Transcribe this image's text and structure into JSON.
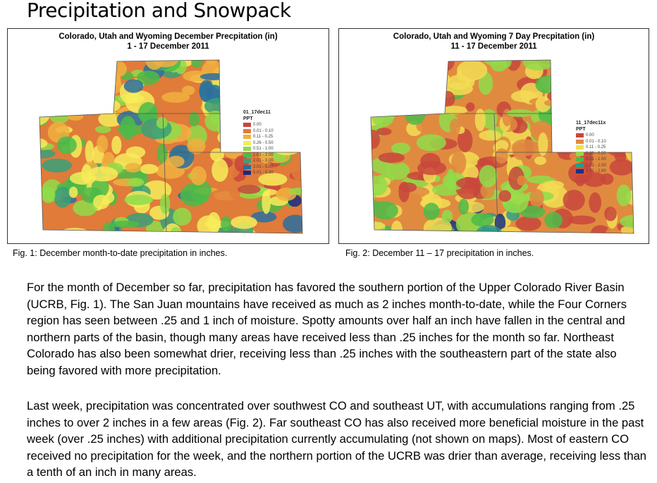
{
  "title": "Precipitation and Snowpack",
  "figures": [
    {
      "map_title_1": "Colorado, Utah and Wyoming December Precpitation (in)",
      "map_title_2": "1 - 17 December 2011",
      "legend_title": "01_17dec11",
      "legend_subtitle": "PPT",
      "legend": [
        {
          "label": "0.00",
          "color": "#c8463c"
        },
        {
          "label": "0.01 - 0.10",
          "color": "#e07b3a"
        },
        {
          "label": "0.11 - 0.25",
          "color": "#f0b040"
        },
        {
          "label": "0.26 - 0.50",
          "color": "#f7ec5a"
        },
        {
          "label": "0.51 - 1.00",
          "color": "#8fdc4a"
        },
        {
          "label": "1.01 - 2.00",
          "color": "#4cbb48"
        },
        {
          "label": "2.01 - 3.00",
          "color": "#38a07a"
        },
        {
          "label": "3.01 - 5.00",
          "color": "#2a6ea0"
        },
        {
          "label": "5.01 - 5.30",
          "color": "#1a2a80"
        }
      ],
      "caption": "Fig. 1: December month-to-date precipitation in inches."
    },
    {
      "map_title_1": "Colorado, Utah and Wyoming 7 Day Precpitation (in)",
      "map_title_2": "11 - 17 December 2011",
      "legend_title": "11_17dec11x",
      "legend_subtitle": "PPT",
      "legend": [
        {
          "label": "0.00",
          "color": "#c8463c"
        },
        {
          "label": "0.01 - 0.10",
          "color": "#e08a40"
        },
        {
          "label": "0.11 - 0.25",
          "color": "#f2dc55"
        },
        {
          "label": "0.26 - 0.50",
          "color": "#8fdc4a"
        },
        {
          "label": "0.51 - 1.00",
          "color": "#4cbb48"
        },
        {
          "label": "1.01 - 2.00",
          "color": "#2e9a8a"
        },
        {
          "label": "2.01 - 2.60",
          "color": "#1a3080"
        }
      ],
      "caption": "Fig. 2:  December 11 – 17 precipitation in inches."
    }
  ],
  "paragraphs": [
    "For the month of December so far, precipitation has favored the southern portion of the Upper Colorado River Basin (UCRB, Fig. 1).  The San Juan mountains have received as much as 2 inches month-to-date, while the Four Corners region has seen between .25 and 1 inch of moisture.  Spotty amounts over half an inch have fallen in the central and northern parts of the basin, though many areas have received less than .25 inches for the month so far.  Northeast Colorado has also been somewhat drier, receiving less than .25 inches with the southeastern part of the state also being favored with more precipitation.",
    "Last week, precipitation was concentrated over southwest CO and southeast UT, with accumulations ranging from .25 inches to over 2 inches in a few areas (Fig. 2).  Far southeast CO has also received more beneficial moisture in the past week (over .25 inches) with additional precipitation currently accumulating (not shown on maps).  Most of eastern CO received no precipitation for the week, and the northern portion of the UCRB was drier than average, receiving less than a tenth of an inch in many areas."
  ]
}
